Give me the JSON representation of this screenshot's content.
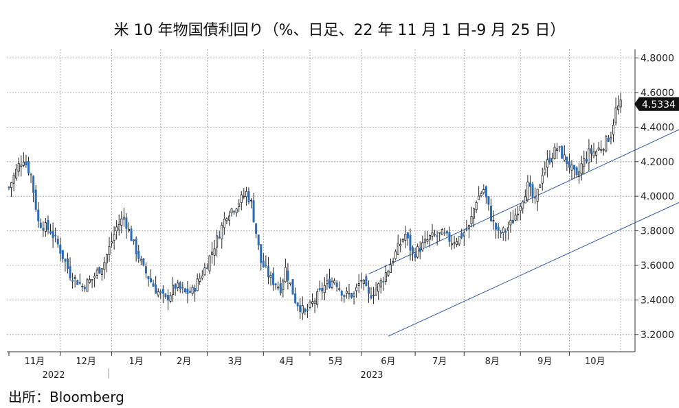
{
  "title": "米 10 年物国債利回り（%、日足、22 年 11 月 1 日-9 月 25 日）",
  "source": "出所：Bloomberg",
  "chart_data": {
    "type": "candlestick",
    "title": "米 10 年物国債利回り（%、日足、22 年 11 月 1 日-9 月 25 日）",
    "ylim": [
      3.1,
      4.85
    ],
    "yticks": [
      "3.2000",
      "3.4000",
      "3.6000",
      "3.8000",
      "4.0000",
      "4.2000",
      "4.4000",
      "4.6000",
      "4.8000"
    ],
    "ytick_values": [
      3.2,
      3.4,
      3.6,
      3.8,
      4.0,
      4.2,
      4.4,
      4.6,
      4.8
    ],
    "months": [
      "11月",
      "12月",
      "1月",
      "2月",
      "3月",
      "4月",
      "5月",
      "6月",
      "7月",
      "8月",
      "9月",
      "10月"
    ],
    "years": [
      "2022",
      "2023"
    ],
    "last_value_label": "4.5334",
    "last_value": 4.5334,
    "grid": true,
    "colors": {
      "up": "#ffffff",
      "down": "#2b6cb8",
      "wick": "#222222",
      "channel": "#2a5aa6",
      "label_bg": "#111111"
    },
    "series_keypoints": [
      [
        0,
        4.05
      ],
      [
        4,
        4.18
      ],
      [
        6,
        4.22
      ],
      [
        9,
        4.12
      ],
      [
        12,
        3.85
      ],
      [
        17,
        3.8
      ],
      [
        20,
        3.72
      ],
      [
        25,
        3.55
      ],
      [
        30,
        3.48
      ],
      [
        34,
        3.52
      ],
      [
        39,
        3.62
      ],
      [
        44,
        3.82
      ],
      [
        47,
        3.88
      ],
      [
        51,
        3.72
      ],
      [
        55,
        3.58
      ],
      [
        60,
        3.46
      ],
      [
        64,
        3.4
      ],
      [
        68,
        3.48
      ],
      [
        72,
        3.44
      ],
      [
        75,
        3.45
      ],
      [
        80,
        3.58
      ],
      [
        85,
        3.75
      ],
      [
        89,
        3.9
      ],
      [
        93,
        3.95
      ],
      [
        97,
        4.02
      ],
      [
        99,
        3.96
      ],
      [
        103,
        3.62
      ],
      [
        107,
        3.52
      ],
      [
        111,
        3.47
      ],
      [
        113,
        3.58
      ],
      [
        117,
        3.4
      ],
      [
        121,
        3.32
      ],
      [
        125,
        3.4
      ],
      [
        129,
        3.48
      ],
      [
        133,
        3.52
      ],
      [
        137,
        3.43
      ],
      [
        141,
        3.43
      ],
      [
        144,
        3.52
      ],
      [
        147,
        3.42
      ],
      [
        151,
        3.48
      ],
      [
        155,
        3.58
      ],
      [
        159,
        3.7
      ],
      [
        162,
        3.78
      ],
      [
        165,
        3.66
      ],
      [
        168,
        3.7
      ],
      [
        172,
        3.76
      ],
      [
        177,
        3.78
      ],
      [
        181,
        3.74
      ],
      [
        184,
        3.76
      ],
      [
        188,
        3.82
      ],
      [
        191,
        3.98
      ],
      [
        194,
        4.04
      ],
      [
        197,
        3.88
      ],
      [
        200,
        3.78
      ],
      [
        203,
        3.8
      ],
      [
        206,
        3.86
      ],
      [
        209,
        3.96
      ],
      [
        212,
        4.06
      ],
      [
        215,
        3.96
      ],
      [
        218,
        4.14
      ],
      [
        221,
        4.22
      ],
      [
        224,
        4.28
      ],
      [
        227,
        4.22
      ],
      [
        229,
        4.18
      ],
      [
        232,
        4.1
      ],
      [
        234,
        4.18
      ],
      [
        237,
        4.25
      ],
      [
        240,
        4.26
      ],
      [
        243,
        4.3
      ],
      [
        246,
        4.36
      ],
      [
        248,
        4.5
      ],
      [
        250,
        4.53
      ]
    ],
    "trend_channel": {
      "upper": {
        "from": [
          147,
          3.55
        ],
        "to": [
          320,
          4.69
        ]
      },
      "lower": {
        "from": [
          155,
          3.19
        ],
        "to": [
          330,
          4.33
        ]
      }
    }
  }
}
